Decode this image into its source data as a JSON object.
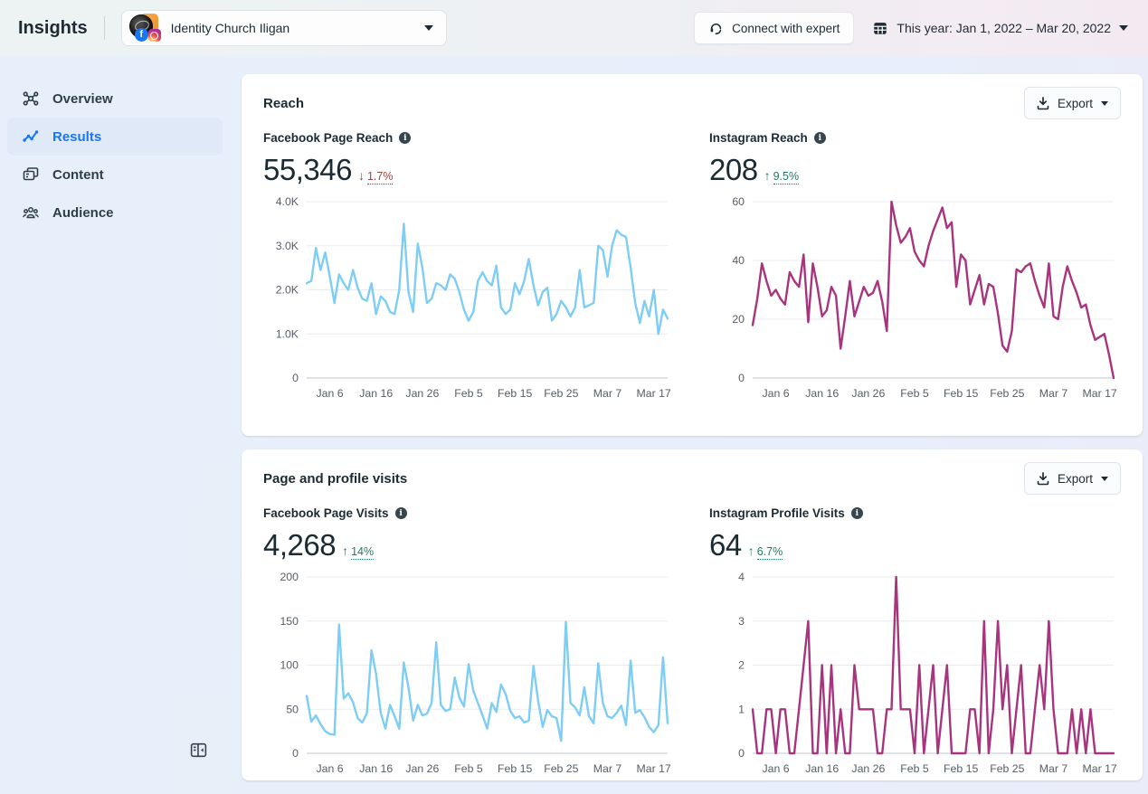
{
  "header": {
    "title": "Insights",
    "account": {
      "name": "Identity Church Iligan"
    },
    "connect_button_label": "Connect with expert",
    "date_range": "This year: Jan 1, 2022 – Mar 20, 2022"
  },
  "sidebar": {
    "items": [
      {
        "label": "Overview",
        "icon": "overview-icon",
        "active": false
      },
      {
        "label": "Results",
        "icon": "results-icon",
        "active": true
      },
      {
        "label": "Content",
        "icon": "content-icon",
        "active": false
      },
      {
        "label": "Audience",
        "icon": "audience-icon",
        "active": false
      }
    ]
  },
  "cards": [
    {
      "title": "Reach",
      "export_label": "Export",
      "metrics": [
        {
          "label": "Facebook Page Reach",
          "value": "55,346",
          "arrow": "↓",
          "delta": "1.7%",
          "direction": "down"
        },
        {
          "label": "Instagram Reach",
          "value": "208",
          "arrow": "↑",
          "delta": "9.5%",
          "direction": "up"
        }
      ]
    },
    {
      "title": "Page and profile visits",
      "export_label": "Export",
      "metrics": [
        {
          "label": "Facebook Page Visits",
          "value": "4,268",
          "arrow": "↑",
          "delta": "14%",
          "direction": "up"
        },
        {
          "label": "Instagram Profile Visits",
          "value": "64",
          "arrow": "↑",
          "delta": "6.7%",
          "direction": "up"
        }
      ]
    }
  ],
  "colors": {
    "facebook_line": "#7DCDF5",
    "instagram_line": "#A8347E",
    "accent_blue": "#1877F2",
    "delta_down": "#9A403C",
    "delta_up": "#1F7A63"
  },
  "icons": {
    "headset-icon": "support headset",
    "calendar-icon": "calendar grid",
    "caret-down-icon": "▾",
    "download-icon": "arrow into tray",
    "info-icon": "i in filled circle",
    "overview-icon": "hub network",
    "results-icon": "trend line with points",
    "content-icon": "stacked posts",
    "audience-icon": "group of people",
    "collapse-sidebar-icon": "panel with left arrow"
  },
  "chart_data": [
    {
      "type": "line",
      "title": "Facebook Page Reach",
      "x_range": "Jan 1, 2022 – Mar 20, 2022",
      "color": "#7DCDF5",
      "ylim": [
        0,
        4000
      ],
      "yticks": [
        {
          "v": 0,
          "label": "0"
        },
        {
          "v": 1000,
          "label": "1.0K"
        },
        {
          "v": 2000,
          "label": "2.0K"
        },
        {
          "v": 3000,
          "label": "3.0K"
        },
        {
          "v": 4000,
          "label": "4.0K"
        }
      ],
      "x_ticks": [
        {
          "i": 5,
          "label": "Jan 6"
        },
        {
          "i": 15,
          "label": "Jan 16"
        },
        {
          "i": 25,
          "label": "Jan 26"
        },
        {
          "i": 35,
          "label": "Feb 5"
        },
        {
          "i": 45,
          "label": "Feb 15"
        },
        {
          "i": 55,
          "label": "Feb 25"
        },
        {
          "i": 65,
          "label": "Mar 7"
        },
        {
          "i": 75,
          "label": "Mar 17"
        }
      ],
      "values": [
        2150,
        2200,
        2950,
        2450,
        2850,
        2300,
        1700,
        2350,
        2150,
        2000,
        2450,
        2050,
        1800,
        1750,
        2150,
        1450,
        1850,
        1750,
        1500,
        1450,
        2000,
        3500,
        1950,
        1500,
        3050,
        2500,
        1700,
        1800,
        2150,
        2100,
        2000,
        2350,
        2250,
        1950,
        1550,
        1300,
        1500,
        2200,
        2400,
        2200,
        2100,
        2550,
        1600,
        1450,
        1550,
        2150,
        1900,
        2200,
        2700,
        2100,
        1650,
        1950,
        2050,
        1300,
        1450,
        1750,
        1600,
        1400,
        1600,
        2450,
        1600,
        1650,
        1700,
        3000,
        2900,
        2300,
        3000,
        3350,
        3250,
        3200,
        2500,
        1700,
        1250,
        1750,
        1400,
        2000,
        1000,
        1550,
        1350
      ]
    },
    {
      "type": "line",
      "title": "Instagram Reach",
      "x_range": "Jan 1, 2022 – Mar 20, 2022",
      "color": "#A8347E",
      "ylim": [
        0,
        60
      ],
      "yticks": [
        {
          "v": 0,
          "label": "0"
        },
        {
          "v": 20,
          "label": "20"
        },
        {
          "v": 40,
          "label": "40"
        },
        {
          "v": 60,
          "label": "60"
        }
      ],
      "x_ticks": [
        {
          "i": 5,
          "label": "Jan 6"
        },
        {
          "i": 15,
          "label": "Jan 16"
        },
        {
          "i": 25,
          "label": "Jan 26"
        },
        {
          "i": 35,
          "label": "Feb 5"
        },
        {
          "i": 45,
          "label": "Feb 15"
        },
        {
          "i": 55,
          "label": "Feb 25"
        },
        {
          "i": 65,
          "label": "Mar 7"
        },
        {
          "i": 75,
          "label": "Mar 17"
        }
      ],
      "values": [
        18,
        27,
        39,
        33,
        28,
        30,
        27,
        25,
        36,
        33,
        31,
        42,
        19,
        39,
        31,
        21,
        23,
        31,
        28,
        10,
        21,
        33,
        21,
        26,
        31,
        28,
        29,
        33,
        26,
        16,
        60,
        52,
        46,
        48,
        51,
        43,
        40,
        38,
        45,
        50,
        54,
        58,
        51,
        53,
        31,
        42,
        40,
        25,
        30,
        35,
        25,
        32,
        31,
        22,
        11,
        9,
        16,
        37,
        36,
        38,
        39,
        33,
        28,
        24,
        39,
        21,
        20,
        31,
        38,
        33,
        29,
        24,
        25,
        18,
        13,
        14,
        15,
        8,
        0
      ]
    },
    {
      "type": "line",
      "title": "Facebook Page Visits",
      "x_range": "Jan 1, 2022 – Mar 20, 2022",
      "color": "#7DCDF5",
      "ylim": [
        0,
        200
      ],
      "yticks": [
        {
          "v": 0,
          "label": "0"
        },
        {
          "v": 50,
          "label": "50"
        },
        {
          "v": 100,
          "label": "100"
        },
        {
          "v": 150,
          "label": "150"
        },
        {
          "v": 200,
          "label": "200"
        }
      ],
      "x_ticks": [
        {
          "i": 5,
          "label": "Jan 6"
        },
        {
          "i": 15,
          "label": "Jan 16"
        },
        {
          "i": 25,
          "label": "Jan 26"
        },
        {
          "i": 35,
          "label": "Feb 5"
        },
        {
          "i": 45,
          "label": "Feb 15"
        },
        {
          "i": 55,
          "label": "Feb 25"
        },
        {
          "i": 65,
          "label": "Mar 7"
        },
        {
          "i": 75,
          "label": "Mar 17"
        }
      ],
      "values": [
        65,
        36,
        43,
        33,
        25,
        22,
        21,
        146,
        62,
        68,
        58,
        40,
        35,
        45,
        117,
        90,
        46,
        28,
        55,
        42,
        28,
        103,
        75,
        37,
        55,
        43,
        45,
        57,
        126,
        55,
        48,
        50,
        86,
        63,
        53,
        101,
        71,
        57,
        43,
        28,
        57,
        47,
        78,
        67,
        48,
        40,
        42,
        35,
        37,
        99,
        60,
        30,
        49,
        42,
        40,
        14,
        149,
        57,
        52,
        43,
        75,
        42,
        34,
        102,
        57,
        42,
        40,
        46,
        54,
        32,
        105,
        46,
        49,
        41,
        30,
        24,
        32,
        109,
        34
      ]
    },
    {
      "type": "line",
      "title": "Instagram Profile Visits",
      "x_range": "Jan 1, 2022 – Mar 20, 2022",
      "color": "#A8347E",
      "ylim": [
        0,
        4
      ],
      "yticks": [
        {
          "v": 0,
          "label": "0"
        },
        {
          "v": 1,
          "label": "1"
        },
        {
          "v": 2,
          "label": "2"
        },
        {
          "v": 3,
          "label": "3"
        },
        {
          "v": 4,
          "label": "4"
        }
      ],
      "x_ticks": [
        {
          "i": 5,
          "label": "Jan 6"
        },
        {
          "i": 15,
          "label": "Jan 16"
        },
        {
          "i": 25,
          "label": "Jan 26"
        },
        {
          "i": 35,
          "label": "Feb 5"
        },
        {
          "i": 45,
          "label": "Feb 15"
        },
        {
          "i": 55,
          "label": "Feb 25"
        },
        {
          "i": 65,
          "label": "Mar 7"
        },
        {
          "i": 75,
          "label": "Mar 17"
        }
      ],
      "values": [
        1,
        0,
        0,
        1,
        1,
        0,
        1,
        1,
        0,
        0,
        1,
        2,
        3,
        0,
        0,
        2,
        0,
        2,
        0,
        1,
        0,
        0,
        2,
        1,
        1,
        1,
        1,
        0,
        0,
        1,
        1,
        4,
        1,
        1,
        1,
        0,
        2,
        0,
        1,
        2,
        0,
        1,
        2,
        0,
        0,
        0,
        0,
        1,
        1,
        0,
        3,
        0,
        1,
        3,
        1,
        2,
        0,
        1,
        2,
        0,
        0,
        1,
        2,
        1,
        3,
        1,
        0,
        0,
        0,
        1,
        0,
        1,
        0,
        1,
        0,
        0,
        0,
        0,
        0
      ]
    }
  ]
}
